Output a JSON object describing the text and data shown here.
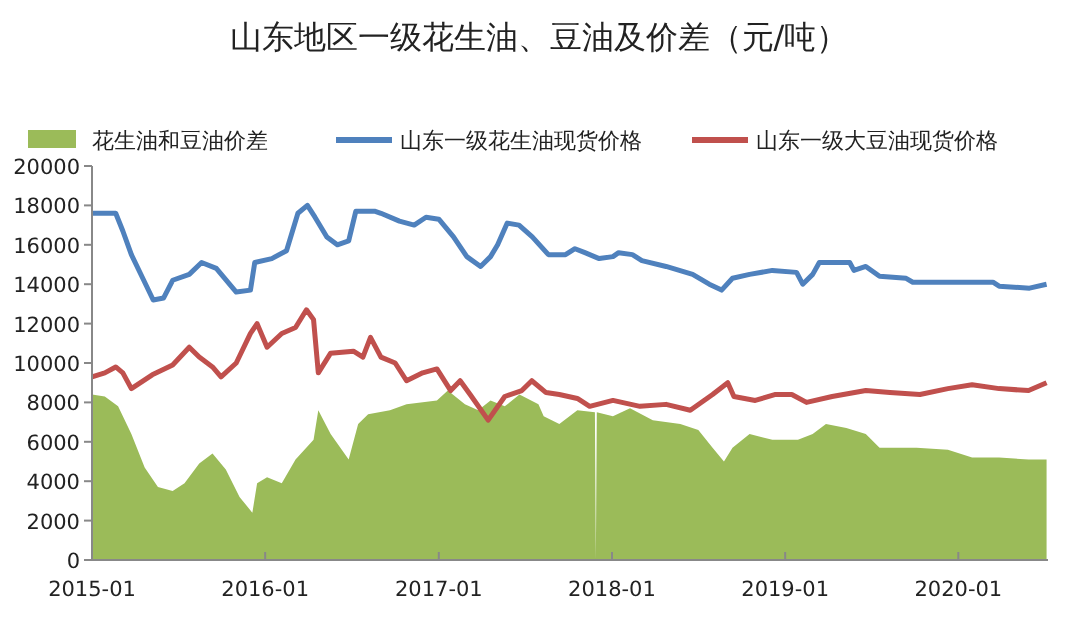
{
  "chart_data": {
    "type": "line",
    "title": "山东地区一级花生油、豆油及价差（元/吨）",
    "xlim": [
      "2015-01-01",
      "2020-07-08"
    ],
    "xticks": [
      "2015-01",
      "2016-01",
      "2017-01",
      "2018-01",
      "2019-01",
      "2020-01"
    ],
    "ylim": [
      0,
      20000
    ],
    "yticks": [
      0,
      2000,
      4000,
      6000,
      8000,
      10000,
      12000,
      14000,
      16000,
      18000,
      20000
    ],
    "grid": false,
    "legend": "top",
    "series": [
      {
        "name": "花生油和豆油价差",
        "type": "area",
        "color": "#9bbb59",
        "x": [
          "2015-01-01",
          "2015-01-28",
          "2015-02-25",
          "2015-03-25",
          "2015-04-22",
          "2015-05-20",
          "2015-06-20",
          "2015-07-15",
          "2015-08-15",
          "2015-09-12",
          "2015-10-10",
          "2015-11-08",
          "2015-12-05",
          "2015-12-15",
          "2016-01-05",
          "2016-02-05",
          "2016-03-05",
          "2016-04-12",
          "2016-04-22",
          "2016-05-18",
          "2016-06-25",
          "2016-07-15",
          "2016-08-05",
          "2016-09-20",
          "2016-10-25",
          "2016-12-28",
          "2017-01-20",
          "2017-02-25",
          "2017-03-25",
          "2017-04-20",
          "2017-05-20",
          "2017-06-20",
          "2017-07-30",
          "2017-08-10",
          "2017-09-12",
          "2017-10-20",
          "2017-11-26",
          "2017-11-28",
          "2017-11-30",
          "2018-01-03",
          "2018-02-08",
          "2018-03-28",
          "2018-05-25",
          "2018-07-02",
          "2018-08-01",
          "2018-08-25",
          "2018-09-12",
          "2018-10-18",
          "2018-12-05",
          "2019-01-28",
          "2019-02-28",
          "2019-03-28",
          "2019-05-10",
          "2019-06-20",
          "2019-07-19",
          "2019-10-05",
          "2019-12-10",
          "2020-01-30",
          "2020-03-27",
          "2020-05-28",
          "2020-07-05"
        ],
        "values": [
          8400,
          8300,
          7800,
          6400,
          4700,
          3700,
          3500,
          3900,
          4900,
          5400,
          4600,
          3200,
          2400,
          3900,
          4200,
          3900,
          5100,
          6100,
          7600,
          6400,
          5100,
          6900,
          7400,
          7600,
          7900,
          8100,
          8600,
          7900,
          7600,
          8100,
          7800,
          8400,
          7900,
          7300,
          6900,
          7600,
          7500,
          0,
          7500,
          7300,
          7700,
          7100,
          6900,
          6600,
          5700,
          5000,
          5700,
          6400,
          6100,
          6100,
          6400,
          6900,
          6700,
          6400,
          5700,
          5700,
          5600,
          5200,
          5200,
          5100,
          5100
        ]
      },
      {
        "name": "山东一级花生油现货价格",
        "color": "#4f81bd",
        "x": [
          "2015-01-01",
          "2015-02-20",
          "2015-03-07",
          "2015-03-25",
          "2015-04-20",
          "2015-05-10",
          "2015-06-01",
          "2015-06-20",
          "2015-07-25",
          "2015-08-20",
          "2015-09-20",
          "2015-11-01",
          "2015-12-01",
          "2015-12-10",
          "2016-01-15",
          "2016-02-15",
          "2016-03-10",
          "2016-03-30",
          "2016-04-15",
          "2016-05-10",
          "2016-06-01",
          "2016-06-25",
          "2016-07-10",
          "2016-08-20",
          "2016-09-01",
          "2016-10-10",
          "2016-11-10",
          "2016-12-05",
          "2017-01-01",
          "2017-02-01",
          "2017-03-01",
          "2017-03-30",
          "2017-04-20",
          "2017-05-05",
          "2017-05-25",
          "2017-06-19",
          "2017-07-17",
          "2017-08-20",
          "2017-09-25",
          "2017-10-15",
          "2017-11-05",
          "2017-12-05",
          "2018-01-03",
          "2018-01-15",
          "2018-02-13",
          "2018-03-05",
          "2018-04-25",
          "2018-06-20",
          "2018-07-25",
          "2018-08-20",
          "2018-09-12",
          "2018-10-18",
          "2018-12-05",
          "2019-01-25",
          "2019-02-07",
          "2019-02-28",
          "2019-03-14",
          "2019-05-17",
          "2019-05-26",
          "2019-06-20",
          "2019-07-19",
          "2019-09-13",
          "2019-09-27",
          "2020-03-14",
          "2020-03-27",
          "2020-05-30",
          "2020-07-05"
        ],
        "values": [
          17600,
          17600,
          16700,
          15500,
          14200,
          13200,
          13300,
          14200,
          14500,
          15100,
          14800,
          13600,
          13700,
          15100,
          15300,
          15700,
          17600,
          18000,
          17400,
          16400,
          16000,
          16200,
          17700,
          17700,
          17600,
          17200,
          17000,
          17400,
          17300,
          16400,
          15400,
          14900,
          15400,
          16000,
          17100,
          17000,
          16400,
          15500,
          15500,
          15800,
          15600,
          15300,
          15400,
          15600,
          15500,
          15200,
          14900,
          14500,
          14000,
          13700,
          14300,
          14500,
          14700,
          14600,
          14000,
          14500,
          15100,
          15100,
          14700,
          14900,
          14400,
          14300,
          14100,
          14100,
          13900,
          13800,
          14000
        ]
      },
      {
        "name": "山东一级大豆油现货价格",
        "color": "#c0504d",
        "x": [
          "2015-01-01",
          "2015-01-28",
          "2015-02-20",
          "2015-03-07",
          "2015-03-25",
          "2015-05-08",
          "2015-06-20",
          "2015-07-25",
          "2015-08-15",
          "2015-09-12",
          "2015-09-30",
          "2015-11-01",
          "2015-12-01",
          "2015-12-15",
          "2016-01-05",
          "2016-02-05",
          "2016-03-05",
          "2016-03-28",
          "2016-04-12",
          "2016-04-22",
          "2016-05-18",
          "2016-07-05",
          "2016-07-25",
          "2016-08-10",
          "2016-09-01",
          "2016-10-01",
          "2016-10-25",
          "2016-11-28",
          "2016-12-28",
          "2017-01-26",
          "2017-02-15",
          "2017-03-08",
          "2017-04-15",
          "2017-05-20",
          "2017-06-25",
          "2017-07-16",
          "2017-08-15",
          "2017-09-12",
          "2017-10-20",
          "2017-11-15",
          "2018-01-03",
          "2018-03-01",
          "2018-04-25",
          "2018-06-15",
          "2018-08-01",
          "2018-09-02",
          "2018-09-15",
          "2018-10-30",
          "2018-12-10",
          "2019-01-15",
          "2019-02-15",
          "2019-04-10",
          "2019-06-20",
          "2019-08-10",
          "2019-10-12",
          "2019-12-10",
          "2020-01-30",
          "2020-03-27",
          "2020-05-28",
          "2020-07-05"
        ],
        "values": [
          9300,
          9500,
          9800,
          9500,
          8700,
          9400,
          9900,
          10800,
          10300,
          9800,
          9300,
          10000,
          11500,
          12000,
          10800,
          11500,
          11800,
          12700,
          12200,
          9500,
          10500,
          10600,
          10300,
          11300,
          10300,
          10000,
          9100,
          9500,
          9700,
          8600,
          9100,
          8400,
          7100,
          8300,
          8600,
          9100,
          8500,
          8400,
          8200,
          7800,
          8100,
          7800,
          7900,
          7600,
          8400,
          9000,
          8300,
          8100,
          8400,
          8400,
          8000,
          8300,
          8600,
          8500,
          8400,
          8700,
          8900,
          8700,
          8600,
          9000
        ]
      }
    ]
  }
}
